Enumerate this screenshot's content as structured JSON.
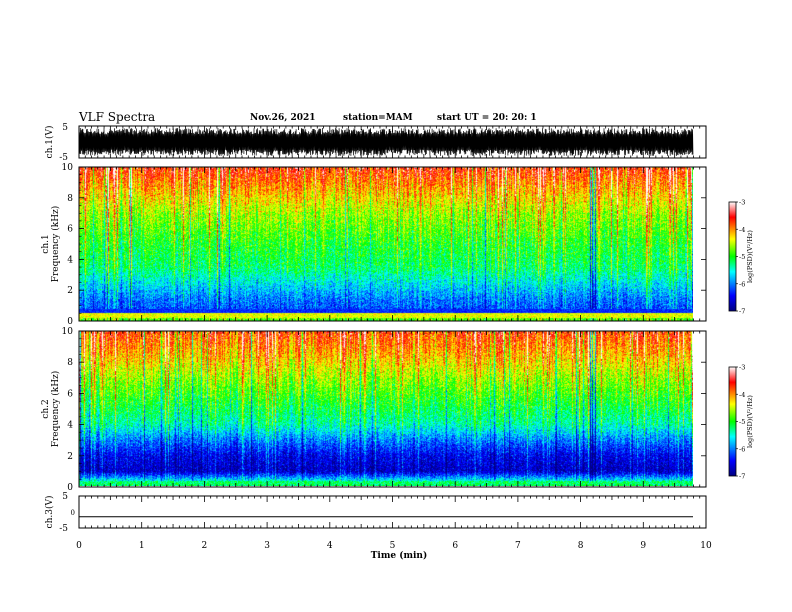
{
  "header": {
    "title": "VLF Spectra",
    "date": "Nov.26, 2021",
    "station": "station=MAM",
    "start_ut": "start UT =  20: 20: 1"
  },
  "chart_data": [
    {
      "type": "line",
      "panel": "ch1-waveform",
      "ylabel": "ch.1(V)",
      "ylim": [
        -5,
        5
      ],
      "yticks": [
        "5",
        "-5"
      ],
      "xlim": [
        0,
        10
      ],
      "signal": "dense oscillating waveform spanning approx -4 to 4 V"
    },
    {
      "type": "heatmap",
      "panel": "ch1-spectrogram",
      "ylabel": "ch.1\nFrequency (kHz)",
      "ylabel_lines": [
        "ch.1",
        "Frequency (kHz)"
      ],
      "yticks": [
        "0",
        "2",
        "4",
        "6",
        "8",
        "10"
      ],
      "ylim": [
        0,
        10
      ],
      "xlim": [
        0,
        9.85
      ],
      "colorbar": {
        "label": "log(PSD)(V²/Hz)",
        "ticks": [
          "-3",
          "-4",
          "-5",
          "-6",
          "-7"
        ],
        "range": [
          -7,
          -3
        ]
      },
      "profile_khz_logpsd": [
        [
          0,
          -5.0
        ],
        [
          0.4,
          -4.4
        ],
        [
          0.7,
          -6.2
        ],
        [
          1.5,
          -6.0
        ],
        [
          2.5,
          -5.6
        ],
        [
          3.5,
          -5.2
        ],
        [
          5,
          -5.0
        ],
        [
          7,
          -4.6
        ],
        [
          8.5,
          -4.1
        ],
        [
          10,
          -3.6
        ]
      ]
    },
    {
      "type": "heatmap",
      "panel": "ch2-spectrogram",
      "ylabel": "ch.2\nFrequency (kHz)",
      "ylabel_lines": [
        "ch.2",
        "Frequency (kHz)"
      ],
      "yticks": [
        "0",
        "2",
        "4",
        "6",
        "8",
        "10"
      ],
      "ylim": [
        0,
        10
      ],
      "xlim": [
        0,
        9.85
      ],
      "colorbar": {
        "label": "log(PSD)(V²/Hz)",
        "ticks": [
          "-3",
          "-4",
          "-5",
          "-6",
          "-7"
        ],
        "range": [
          -7,
          -3
        ]
      },
      "profile_khz_logpsd": [
        [
          0,
          -5.2
        ],
        [
          0.4,
          -5.6
        ],
        [
          1,
          -6.7
        ],
        [
          2,
          -6.5
        ],
        [
          3,
          -6.0
        ],
        [
          4,
          -5.4
        ],
        [
          5.5,
          -5.0
        ],
        [
          7,
          -4.6
        ],
        [
          8.5,
          -4.1
        ],
        [
          10,
          -3.7
        ]
      ]
    },
    {
      "type": "line",
      "panel": "ch3-waveform",
      "ylabel": "ch.3(V)",
      "ylim": [
        -5,
        5
      ],
      "yticks": [
        "5",
        "0",
        "-5"
      ],
      "xlim": [
        0,
        9.85
      ],
      "signal": "flat line at approx -1.5 V"
    }
  ],
  "x_axis": {
    "label": "Time (min)",
    "ticks": [
      "0",
      "1",
      "2",
      "3",
      "4",
      "5",
      "6",
      "7",
      "8",
      "9",
      "10"
    ],
    "range": [
      0,
      10
    ]
  }
}
